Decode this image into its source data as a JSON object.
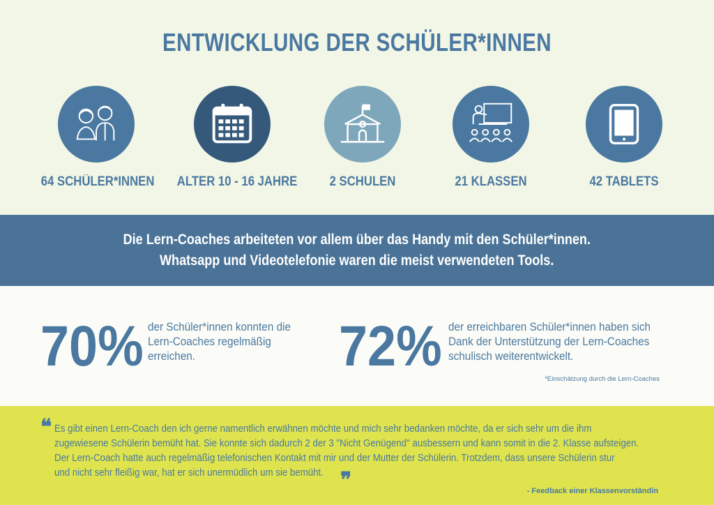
{
  "title": "ENTWICKLUNG DER SCHÜLER*INNEN",
  "stats": [
    {
      "icon": "students-icon",
      "label": "64 SCHÜLER*INNEN",
      "color": "#4a78a0"
    },
    {
      "icon": "calendar-icon",
      "label": "ALTER 10 - 16 JAHRE",
      "color": "#35597a"
    },
    {
      "icon": "school-icon",
      "label": "2 SCHULEN",
      "color": "#7fa7bb"
    },
    {
      "icon": "classroom-icon",
      "label": "21 KLASSEN",
      "color": "#4a78a0"
    },
    {
      "icon": "tablet-icon",
      "label": "42 TABLETS",
      "color": "#4a78a0"
    }
  ],
  "band": {
    "line1": "Die Lern-Coaches arbeiteten vor allem über das Handy mit den Schüler*innen.",
    "line2": "Whatsapp und Videotelefonie waren die meist verwendeten Tools."
  },
  "figures": [
    {
      "value": "70%",
      "text": [
        "der Schüler*innen konnten die",
        "Lern-Coaches regelmäßig",
        "erreichen."
      ]
    },
    {
      "value": "72%",
      "text": [
        "der erreichbaren Schüler*innen haben sich",
        "Dank der Unterstützung der Lern-Coaches",
        "schulisch weiterentwickelt."
      ]
    }
  ],
  "footnote": "*Einschätzung durch die Lern-Coaches",
  "quote": {
    "open_mark": "❝",
    "close_mark": "❞",
    "lines": [
      "Es gibt einen Lern-Coach den ich gerne namentlich erwähnen möchte und mich sehr bedanken möchte, da er sich sehr um die ihm",
      "zugewiesene Schülerin bemüht hat. Sie konnte sich dadurch 2 der 3 \"Nicht Genügend\" ausbessern und kann somit in die 2. Klasse aufsteigen.",
      "Der Lern-Coach hatte auch regelmäßig telefonischen Kontakt mit mir und der Mutter der Schülerin. Trotzdem, dass unsere Schülerin stur",
      "und nicht sehr fleißig war, hat er sich unermüdlich um sie bemüht."
    ],
    "attribution": "- Feedback einer Klassenvorständin"
  },
  "colors": {
    "accent": "#4a78a0",
    "band": "#4a7397",
    "quote_bg": "#dfe44e",
    "top_bg": "#f2f6e6"
  }
}
